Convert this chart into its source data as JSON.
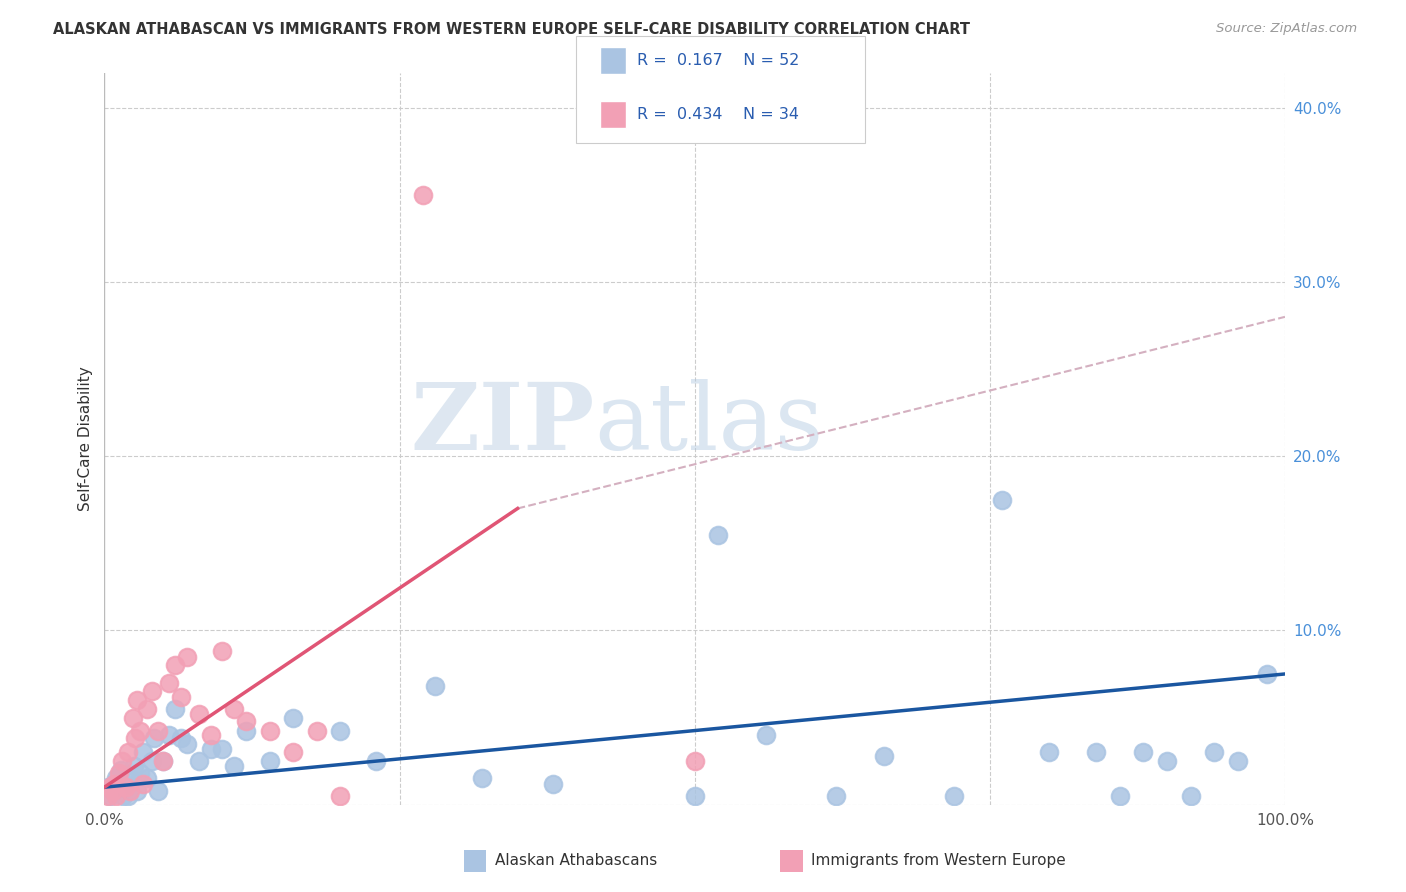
{
  "title": "ALASKAN ATHABASCAN VS IMMIGRANTS FROM WESTERN EUROPE SELF-CARE DISABILITY CORRELATION CHART",
  "source": "Source: ZipAtlas.com",
  "ylabel": "Self-Care Disability",
  "xlim": [
    0,
    1.0
  ],
  "ylim": [
    0,
    0.42
  ],
  "R_blue": 0.167,
  "N_blue": 52,
  "R_pink": 0.434,
  "N_pink": 34,
  "color_blue": "#aac4e2",
  "color_pink": "#f2a0b5",
  "line_blue": "#1a56a0",
  "line_pink": "#e05575",
  "line_dash": "#d4b0c0",
  "blue_points_x": [
    0.003,
    0.005,
    0.007,
    0.008,
    0.01,
    0.012,
    0.014,
    0.016,
    0.018,
    0.02,
    0.022,
    0.025,
    0.028,
    0.03,
    0.033,
    0.036,
    0.04,
    0.042,
    0.045,
    0.05,
    0.055,
    0.06,
    0.065,
    0.07,
    0.08,
    0.09,
    0.1,
    0.11,
    0.12,
    0.14,
    0.16,
    0.2,
    0.23,
    0.28,
    0.32,
    0.38,
    0.5,
    0.52,
    0.56,
    0.62,
    0.66,
    0.72,
    0.76,
    0.8,
    0.84,
    0.86,
    0.88,
    0.9,
    0.92,
    0.94,
    0.96,
    0.985
  ],
  "blue_points_y": [
    0.01,
    0.005,
    0.008,
    0.012,
    0.015,
    0.008,
    0.02,
    0.005,
    0.012,
    0.005,
    0.015,
    0.022,
    0.008,
    0.018,
    0.03,
    0.015,
    0.025,
    0.038,
    0.008,
    0.025,
    0.04,
    0.055,
    0.038,
    0.035,
    0.025,
    0.032,
    0.032,
    0.022,
    0.042,
    0.025,
    0.05,
    0.042,
    0.025,
    0.068,
    0.015,
    0.012,
    0.005,
    0.155,
    0.04,
    0.005,
    0.028,
    0.005,
    0.175,
    0.03,
    0.03,
    0.005,
    0.03,
    0.025,
    0.005,
    0.03,
    0.025,
    0.075
  ],
  "pink_points_x": [
    0.003,
    0.005,
    0.007,
    0.008,
    0.01,
    0.012,
    0.015,
    0.018,
    0.02,
    0.022,
    0.024,
    0.026,
    0.028,
    0.03,
    0.033,
    0.036,
    0.04,
    0.045,
    0.05,
    0.055,
    0.06,
    0.065,
    0.07,
    0.08,
    0.09,
    0.1,
    0.11,
    0.12,
    0.14,
    0.16,
    0.18,
    0.2,
    0.27,
    0.5
  ],
  "pink_points_y": [
    0.005,
    0.01,
    0.008,
    0.012,
    0.005,
    0.018,
    0.025,
    0.01,
    0.03,
    0.008,
    0.05,
    0.038,
    0.06,
    0.042,
    0.012,
    0.055,
    0.065,
    0.042,
    0.025,
    0.07,
    0.08,
    0.062,
    0.085,
    0.052,
    0.04,
    0.088,
    0.055,
    0.048,
    0.042,
    0.03,
    0.042,
    0.005,
    0.35,
    0.025
  ],
  "pink_line_x_start": 0.0,
  "pink_line_x_end": 0.35,
  "pink_line_y_start": 0.01,
  "pink_line_y_end": 0.17,
  "blue_line_x_start": 0.0,
  "blue_line_x_end": 1.0,
  "blue_line_y_start": 0.01,
  "blue_line_y_end": 0.075,
  "dash_line_x_start": 0.35,
  "dash_line_x_end": 1.0,
  "dash_line_y_start": 0.17,
  "dash_line_y_end": 0.28
}
